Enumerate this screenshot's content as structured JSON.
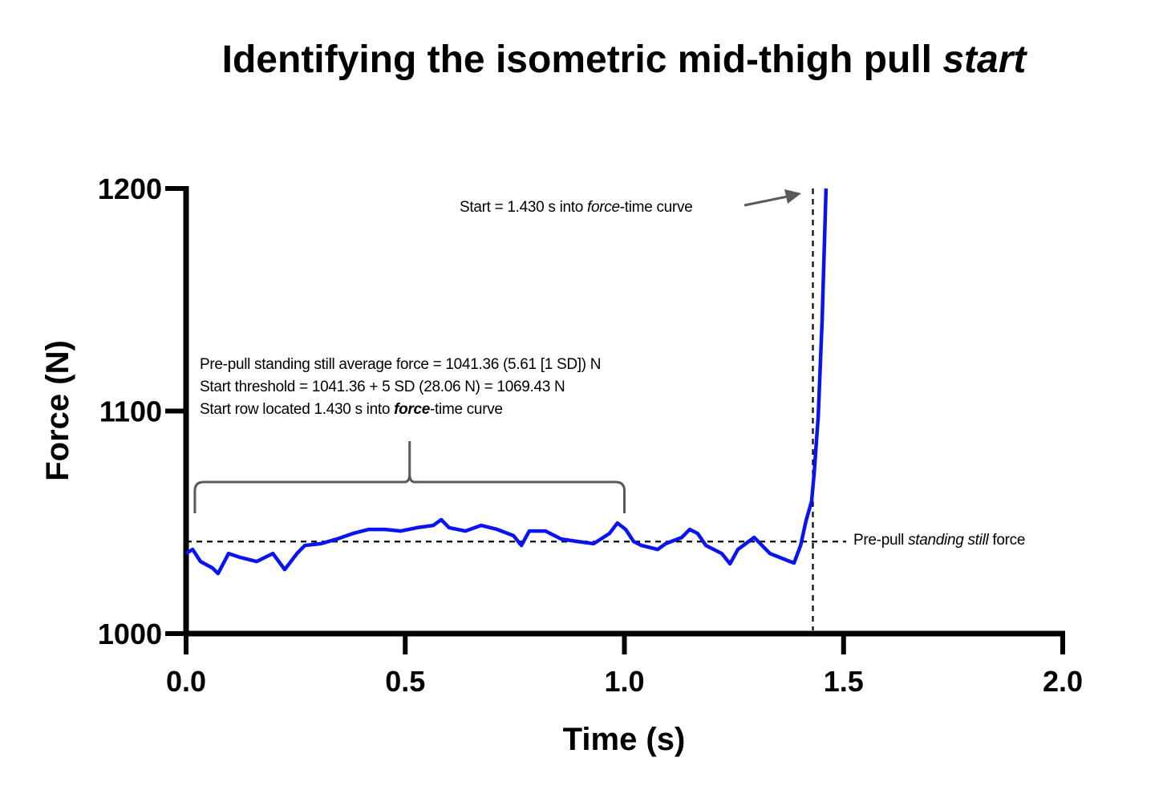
{
  "chart_data": {
    "type": "line",
    "title": "Identifying the isometric mid-thigh pull",
    "title_italic": "start",
    "xlabel": "Time (s)",
    "ylabel": "Force (N)",
    "xlim": [
      0,
      2.0
    ],
    "ylim": [
      1000,
      1200
    ],
    "xticks": [
      "0.0",
      "0.5",
      "1.0",
      "1.5",
      "2.0"
    ],
    "xtick_values": [
      0,
      0.5,
      1.0,
      1.5,
      2.0
    ],
    "yticks": [
      "1000",
      "1100",
      "1200"
    ],
    "ytick_values": [
      1000,
      1100,
      1200
    ],
    "grid": false,
    "series": [
      {
        "name": "Force",
        "color": "#0a14f0",
        "x": [
          0,
          0.015,
          0.033,
          0.06,
          0.073,
          0.097,
          0.124,
          0.161,
          0.198,
          0.225,
          0.253,
          0.271,
          0.307,
          0.344,
          0.381,
          0.417,
          0.454,
          0.49,
          0.527,
          0.564,
          0.582,
          0.6,
          0.637,
          0.673,
          0.71,
          0.747,
          0.765,
          0.783,
          0.82,
          0.856,
          0.893,
          0.93,
          0.966,
          0.984,
          1.003,
          1.021,
          1.039,
          1.076,
          1.094,
          1.131,
          1.149,
          1.167,
          1.186,
          1.222,
          1.241,
          1.259,
          1.296,
          1.332,
          1.378,
          1.387,
          1.402,
          1.414,
          1.427,
          1.433,
          1.442,
          1.451,
          1.46
        ],
        "y": [
          1036.0,
          1037.8,
          1032.4,
          1029.5,
          1027.0,
          1036.0,
          1034.2,
          1032.4,
          1036.0,
          1028.8,
          1036.0,
          1039.6,
          1040.4,
          1042.5,
          1045.0,
          1046.8,
          1046.8,
          1046.1,
          1047.6,
          1048.6,
          1051.2,
          1047.6,
          1046.1,
          1048.6,
          1046.8,
          1044.0,
          1039.6,
          1046.1,
          1046.1,
          1042.5,
          1041.4,
          1040.4,
          1045.0,
          1049.7,
          1046.8,
          1041.4,
          1039.6,
          1037.8,
          1040.4,
          1043.2,
          1046.8,
          1045.0,
          1039.6,
          1036.0,
          1031.4,
          1037.8,
          1043.2,
          1036.0,
          1032.4,
          1031.7,
          1039.6,
          1050.5,
          1059.5,
          1072.1,
          1097.3,
          1140.5,
          1200.0
        ]
      }
    ],
    "reference_lines": {
      "average_force": 1041.36,
      "start_time": 1.43
    },
    "annotations": {
      "start_label_pre": "Start = 1.430 s into ",
      "start_label_italic": "force",
      "start_label_post": "-time curve",
      "average_label_pre": "Pre-pull ",
      "average_label_italic": "standing still",
      "average_label_post": " force",
      "info_line1": "Pre-pull standing still average force = 1041.36 (5.61 [1 SD]) N",
      "info_line2": "Start threshold = 1041.36 + 5 SD (28.06 N) = 1069.43 N",
      "info_line3_pre": "Start row located 1.430 s into ",
      "info_line3_bold": "force",
      "info_line3_post": "-time curve",
      "brace_range": [
        0.02,
        1.0
      ]
    }
  }
}
